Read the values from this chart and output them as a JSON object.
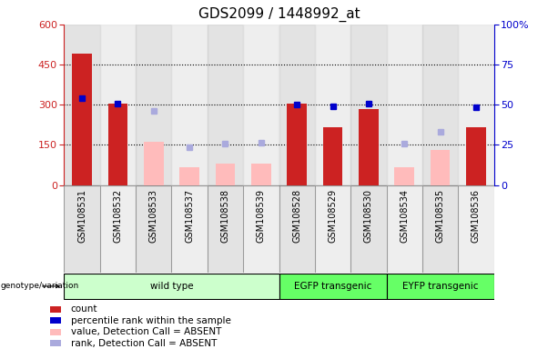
{
  "title": "GDS2099 / 1448992_at",
  "samples": [
    "GSM108531",
    "GSM108532",
    "GSM108533",
    "GSM108537",
    "GSM108538",
    "GSM108539",
    "GSM108528",
    "GSM108529",
    "GSM108530",
    "GSM108534",
    "GSM108535",
    "GSM108536"
  ],
  "group_spans": [
    {
      "start": 0,
      "end": 5,
      "label": "wild type",
      "color": "#ccffcc"
    },
    {
      "start": 6,
      "end": 8,
      "label": "EGFP transgenic",
      "color": "#66ff66"
    },
    {
      "start": 9,
      "end": 11,
      "label": "EYFP transgenic",
      "color": "#66ff66"
    }
  ],
  "count_values": [
    490,
    305,
    null,
    null,
    null,
    null,
    305,
    215,
    285,
    null,
    null,
    215
  ],
  "percentile_values": [
    325,
    305,
    null,
    null,
    null,
    null,
    300,
    293,
    305,
    null,
    null,
    290
  ],
  "absent_value_values": [
    null,
    null,
    160,
    65,
    80,
    80,
    null,
    null,
    null,
    65,
    130,
    null
  ],
  "absent_rank_values": [
    null,
    null,
    278,
    140,
    155,
    158,
    null,
    null,
    null,
    155,
    200,
    null
  ],
  "left_ylim": [
    0,
    600
  ],
  "right_ylim": [
    0,
    100
  ],
  "left_yticks": [
    0,
    150,
    300,
    450,
    600
  ],
  "right_yticks": [
    0,
    25,
    50,
    75,
    100
  ],
  "right_yticklabels": [
    "0",
    "25",
    "50",
    "75",
    "100%"
  ],
  "bar_color_red": "#cc2222",
  "bar_color_pink": "#ffbbbb",
  "dot_color_blue": "#0000cc",
  "dot_color_lightblue": "#aaaadd",
  "col_bg_even": "#cccccc",
  "col_bg_odd": "#e0e0e0",
  "legend_items": [
    {
      "color": "#cc2222",
      "label": "count",
      "shape": "square"
    },
    {
      "color": "#0000cc",
      "label": "percentile rank within the sample",
      "shape": "square"
    },
    {
      "color": "#ffbbbb",
      "label": "value, Detection Call = ABSENT",
      "shape": "square"
    },
    {
      "color": "#aaaadd",
      "label": "rank, Detection Call = ABSENT",
      "shape": "square"
    }
  ],
  "genotype_label": "genotype/variation"
}
